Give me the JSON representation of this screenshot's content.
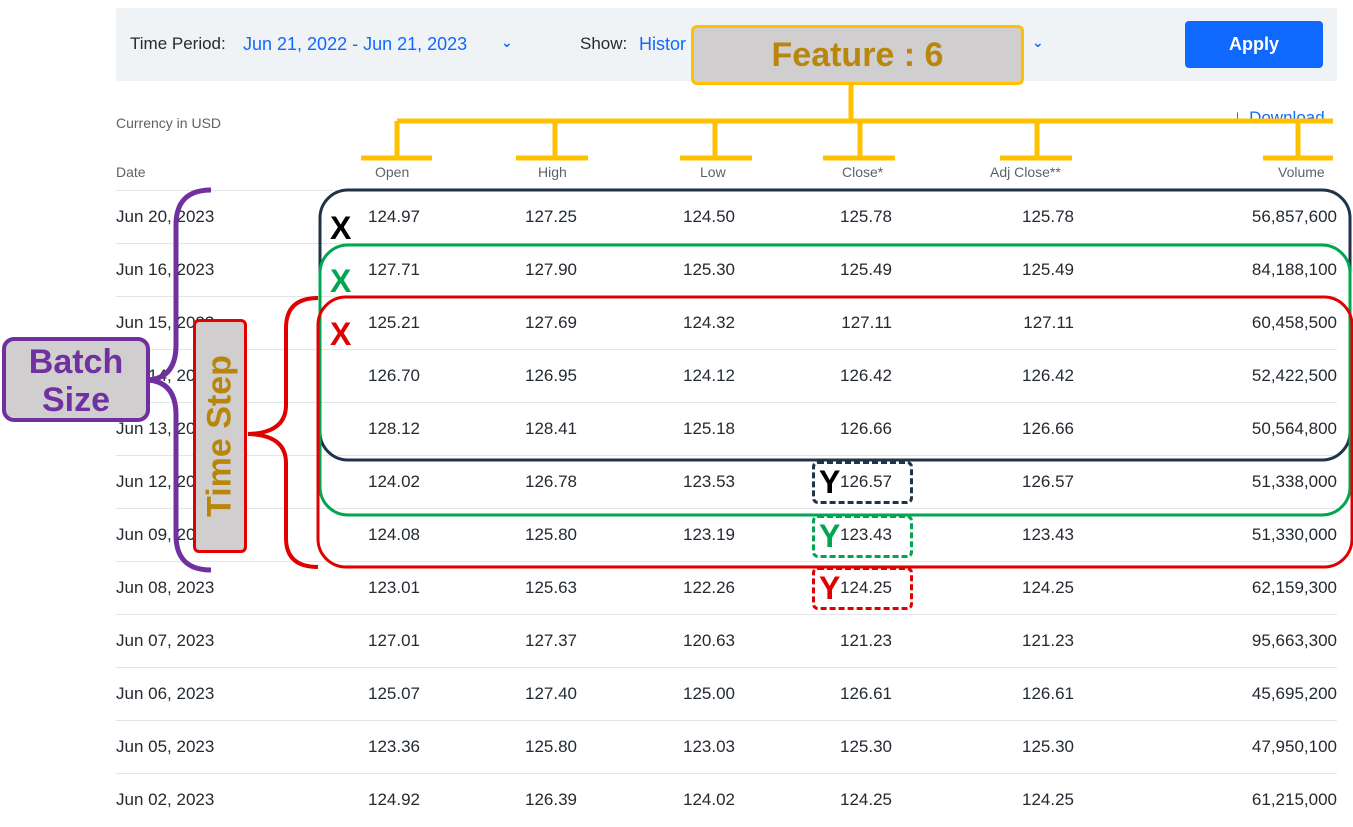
{
  "filter": {
    "time_period_label": "Time Period:",
    "time_period_value": "Jun 21, 2022 - Jun 21, 2023",
    "show_label": "Show:",
    "show_value": "Histor",
    "apply_label": "Apply"
  },
  "currency_note": "Currency in USD",
  "download_label": "Download",
  "columns": [
    "Date",
    "Open",
    "High",
    "Low",
    "Close*",
    "Adj Close**",
    "Volume"
  ],
  "rows": [
    {
      "date": "Jun 20, 2023",
      "open": "124.97",
      "high": "127.25",
      "low": "124.50",
      "close": "125.78",
      "adj": "125.78",
      "vol": "56,857,600"
    },
    {
      "date": "Jun 16, 2023",
      "open": "127.71",
      "high": "127.90",
      "low": "125.30",
      "close": "125.49",
      "adj": "125.49",
      "vol": "84,188,100"
    },
    {
      "date": "Jun 15, 2023",
      "open": "125.21",
      "high": "127.69",
      "low": "124.32",
      "close": "127.11",
      "adj": "127.11",
      "vol": "60,458,500"
    },
    {
      "date": "Jun 14, 2023",
      "open": "126.70",
      "high": "126.95",
      "low": "124.12",
      "close": "126.42",
      "adj": "126.42",
      "vol": "52,422,500"
    },
    {
      "date": "Jun 13, 2023",
      "open": "128.12",
      "high": "128.41",
      "low": "125.18",
      "close": "126.66",
      "adj": "126.66",
      "vol": "50,564,800"
    },
    {
      "date": "Jun 12, 2023",
      "open": "124.02",
      "high": "126.78",
      "low": "123.53",
      "close": "126.57",
      "adj": "126.57",
      "vol": "51,338,000"
    },
    {
      "date": "Jun 09, 2023",
      "open": "124.08",
      "high": "125.80",
      "low": "123.19",
      "close": "123.43",
      "adj": "123.43",
      "vol": "51,330,000"
    },
    {
      "date": "Jun 08, 2023",
      "open": "123.01",
      "high": "125.63",
      "low": "122.26",
      "close": "124.25",
      "adj": "124.25",
      "vol": "62,159,300"
    },
    {
      "date": "Jun 07, 2023",
      "open": "127.01",
      "high": "127.37",
      "low": "120.63",
      "close": "121.23",
      "adj": "121.23",
      "vol": "95,663,300"
    },
    {
      "date": "Jun 06, 2023",
      "open": "125.07",
      "high": "127.40",
      "low": "125.00",
      "close": "126.61",
      "adj": "126.61",
      "vol": "45,695,200"
    },
    {
      "date": "Jun 05, 2023",
      "open": "123.36",
      "high": "125.80",
      "low": "123.03",
      "close": "125.30",
      "adj": "125.30",
      "vol": "47,950,100"
    },
    {
      "date": "Jun 02, 2023",
      "open": "124.92",
      "high": "126.39",
      "low": "124.02",
      "close": "124.25",
      "adj": "124.25",
      "vol": "61,215,000"
    }
  ],
  "annotations": {
    "feature_label": "Feature : 6",
    "batch_label_1": "Batch",
    "batch_label_2": "Size",
    "time_step_label": "Time Step",
    "x_mark": "X",
    "y_mark": "Y",
    "colors": {
      "window_1": "#1f3449",
      "window_2": "#00a650",
      "window_3": "#e00000",
      "feature": "#ffc000",
      "batch": "#7030a0",
      "label_text": "#b8860b"
    }
  }
}
